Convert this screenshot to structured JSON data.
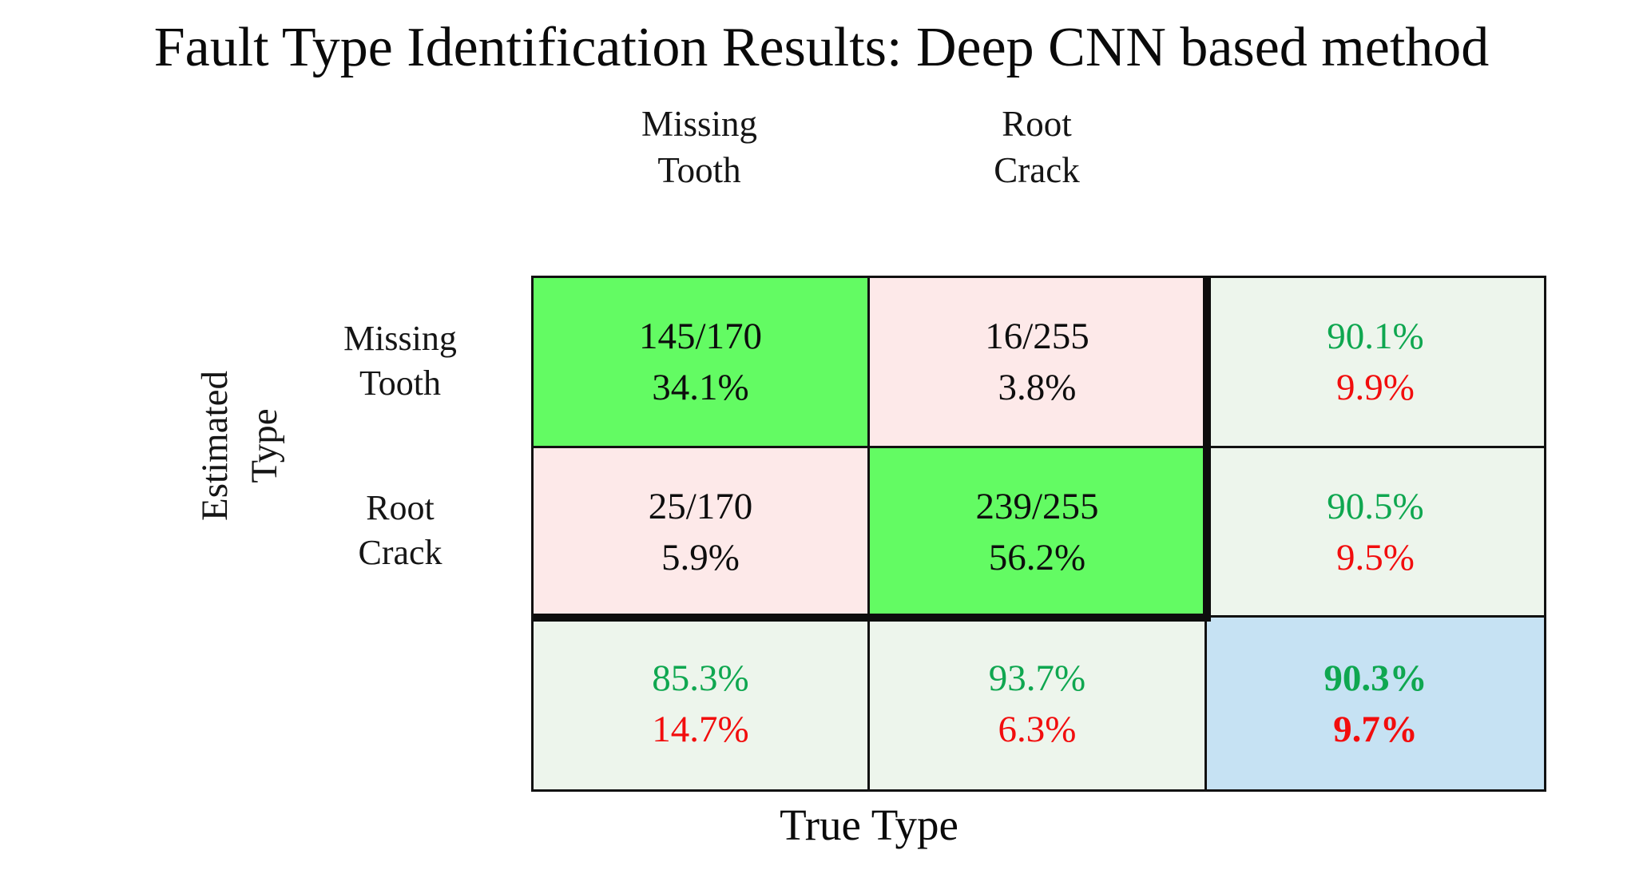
{
  "title": "Fault Type Identification Results: Deep CNN based method",
  "x_axis_label": "True Type",
  "y_axis_label": {
    "line1": "Estimated",
    "line2": "Type"
  },
  "column_headers": [
    {
      "line1": "Missing",
      "line2": "Tooth"
    },
    {
      "line1": "Root",
      "line2": "Crack"
    }
  ],
  "row_headers": [
    {
      "line1": "Missing",
      "line2": "Tooth"
    },
    {
      "line1": "Root",
      "line2": "Crack"
    }
  ],
  "cells": {
    "est_missing_true_missing": {
      "count": "145/170",
      "pct": "34.1%"
    },
    "est_missing_true_root": {
      "count": "16/255",
      "pct": "3.8%"
    },
    "row_summary_missing": {
      "correct": "90.1%",
      "error": "9.9%"
    },
    "est_root_true_missing": {
      "count": "25/170",
      "pct": "5.9%"
    },
    "est_root_true_root": {
      "count": "239/255",
      "pct": "56.2%"
    },
    "row_summary_root": {
      "correct": "90.5%",
      "error": "9.5%"
    },
    "col_summary_missing": {
      "correct": "85.3%",
      "error": "14.7%"
    },
    "col_summary_root": {
      "correct": "93.7%",
      "error": "6.3%"
    },
    "overall": {
      "correct": "90.3%",
      "error": "9.7%"
    }
  },
  "colors": {
    "diagonal_cell_green": "#63fb63",
    "off_diagonal_cell_pink": "#fde9e9",
    "summary_cell_bg": "#edf5ec",
    "overall_cell_blue": "#c6e2f3",
    "correct_text_green": "#0fa750",
    "error_text_red": "#f20d0d",
    "grid_line_black": "#111111"
  },
  "chart_data": {
    "type": "heatmap",
    "subtype": "confusion-matrix",
    "title": "Fault Type Identification Results: Deep CNN based method",
    "xlabel": "True Type",
    "ylabel": "Estimated Type",
    "classes": [
      "Missing Tooth",
      "Root Crack"
    ],
    "matrix_counts": [
      [
        145,
        16
      ],
      [
        25,
        239
      ]
    ],
    "true_class_totals": [
      170,
      255
    ],
    "matrix_percent_of_total": [
      [
        34.1,
        3.8
      ],
      [
        5.9,
        56.2
      ]
    ],
    "row_summary_precision_pct": [
      {
        "estimated_class": "Missing Tooth",
        "correct": 90.1,
        "error": 9.9
      },
      {
        "estimated_class": "Root Crack",
        "correct": 90.5,
        "error": 9.5
      }
    ],
    "col_summary_recall_pct": [
      {
        "true_class": "Missing Tooth",
        "correct": 85.3,
        "error": 14.7
      },
      {
        "true_class": "Root Crack",
        "correct": 93.7,
        "error": 6.3
      }
    ],
    "overall_accuracy_pct": 90.3,
    "overall_error_pct": 9.7,
    "legend_position": "none",
    "grid": true
  }
}
